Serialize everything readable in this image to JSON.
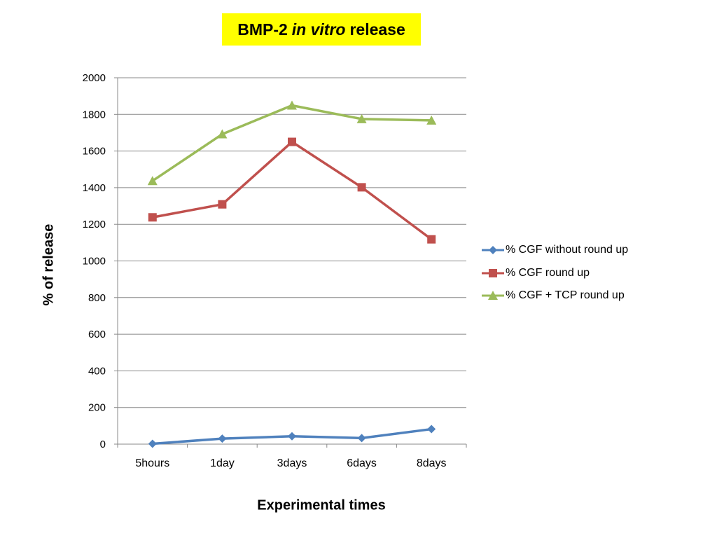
{
  "chart_data": {
    "type": "line",
    "title_parts": [
      "BMP-2",
      "in vitro",
      "release"
    ],
    "xlabel": "Experimental times",
    "ylabel": "% of release",
    "categories": [
      "5hours",
      "1day",
      "3days",
      "6days",
      "8days"
    ],
    "ylim": [
      0,
      2000
    ],
    "yticks": [
      0,
      200,
      400,
      600,
      800,
      1000,
      1200,
      1400,
      1600,
      1800,
      2000
    ],
    "grid": true,
    "legend_position": "right",
    "series": [
      {
        "name": "% CGF without round up",
        "values": [
          2,
          30,
          43,
          33,
          82
        ],
        "color": "#4f81bd",
        "marker": "diamond"
      },
      {
        "name": "% CGF round up",
        "values": [
          1238,
          1309,
          1650,
          1402,
          1118
        ],
        "color": "#c0504d",
        "marker": "square"
      },
      {
        "name": "% CGF + TCP round up",
        "values": [
          1437,
          1692,
          1849,
          1775,
          1767
        ],
        "color": "#9bbb59",
        "marker": "triangle"
      }
    ]
  }
}
